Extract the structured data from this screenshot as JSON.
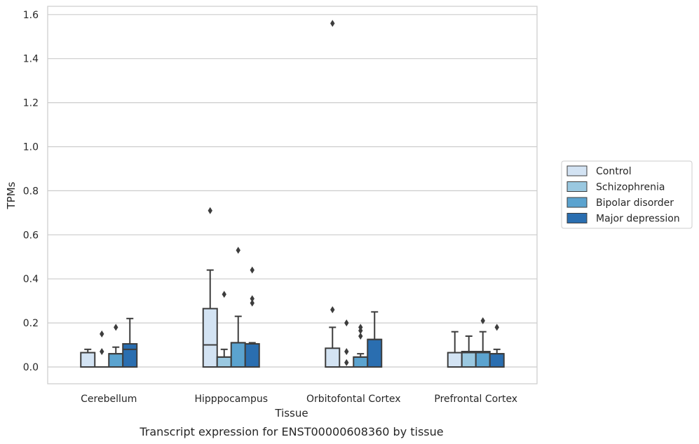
{
  "chart_data": {
    "type": "box",
    "title": "",
    "caption": "Transcript expression for ENST00000608360 by tissue",
    "xlabel": "Tissue",
    "ylabel": "TPMs",
    "ylim": [
      -0.075,
      1.645
    ],
    "yticks": [
      0.0,
      0.2,
      0.4,
      0.6,
      0.8,
      1.0,
      1.2,
      1.4,
      1.6
    ],
    "ytick_labels": [
      "0.0",
      "0.2",
      "0.4",
      "0.6",
      "0.8",
      "1.0",
      "1.2",
      "1.4",
      "1.6"
    ],
    "grid": true,
    "legend_position": "right",
    "categories": [
      "Cerebellum",
      "Hipppocampus",
      "Orbitofontal Cortex",
      "Prefrontal Cortex"
    ],
    "series": [
      {
        "name": "Control",
        "color": "#d3e3f3",
        "boxes": [
          {
            "min": 0.0,
            "q1": 0.0,
            "median": 0.065,
            "q3": 0.065,
            "max": 0.08,
            "outliers": []
          },
          {
            "min": 0.0,
            "q1": 0.0,
            "median": 0.1,
            "q3": 0.265,
            "max": 0.44,
            "outliers": [
              0.71
            ]
          },
          {
            "min": 0.0,
            "q1": 0.0,
            "median": 0.0,
            "q3": 0.085,
            "max": 0.18,
            "outliers": [
              0.26,
              1.56
            ]
          },
          {
            "min": 0.0,
            "q1": 0.0,
            "median": 0.065,
            "q3": 0.065,
            "max": 0.16,
            "outliers": []
          }
        ]
      },
      {
        "name": "Schizophrenia",
        "color": "#9ac8e0",
        "boxes": [
          {
            "min": 0.0,
            "q1": 0.0,
            "median": 0.0,
            "q3": 0.0,
            "max": 0.0,
            "outliers": [
              0.07,
              0.15
            ]
          },
          {
            "min": 0.0,
            "q1": 0.0,
            "median": 0.045,
            "q3": 0.045,
            "max": 0.08,
            "outliers": [
              0.33
            ]
          },
          {
            "min": 0.0,
            "q1": 0.0,
            "median": 0.0,
            "q3": 0.0,
            "max": 0.0,
            "outliers": [
              0.02,
              0.07,
              0.2
            ]
          },
          {
            "min": 0.0,
            "q1": 0.0,
            "median": 0.065,
            "q3": 0.07,
            "max": 0.14,
            "outliers": []
          }
        ]
      },
      {
        "name": "Bipolar disorder",
        "color": "#5ba3cf",
        "boxes": [
          {
            "min": 0.0,
            "q1": 0.0,
            "median": 0.06,
            "q3": 0.06,
            "max": 0.09,
            "outliers": [
              0.18
            ]
          },
          {
            "min": 0.0,
            "q1": 0.0,
            "median": 0.11,
            "q3": 0.11,
            "max": 0.23,
            "outliers": [
              0.53
            ]
          },
          {
            "min": 0.0,
            "q1": 0.0,
            "median": 0.045,
            "q3": 0.045,
            "max": 0.06,
            "outliers": [
              0.14,
              0.165,
              0.18
            ]
          },
          {
            "min": 0.0,
            "q1": 0.0,
            "median": 0.065,
            "q3": 0.07,
            "max": 0.16,
            "outliers": [
              0.21
            ]
          }
        ]
      },
      {
        "name": "Major depression",
        "color": "#2a6eb0",
        "boxes": [
          {
            "min": 0.0,
            "q1": 0.0,
            "median": 0.08,
            "q3": 0.105,
            "max": 0.22,
            "outliers": []
          },
          {
            "min": 0.0,
            "q1": 0.0,
            "median": 0.105,
            "q3": 0.105,
            "max": 0.11,
            "outliers": [
              0.29,
              0.31,
              0.44
            ]
          },
          {
            "min": 0.0,
            "q1": 0.0,
            "median": 0.125,
            "q3": 0.125,
            "max": 0.25,
            "outliers": []
          },
          {
            "min": 0.0,
            "q1": 0.0,
            "median": 0.06,
            "q3": 0.06,
            "max": 0.08,
            "outliers": [
              0.18
            ]
          }
        ]
      }
    ],
    "colors": {
      "grid": "#cccccc",
      "spine": "#cccccc",
      "line": "#3d3d3d",
      "text": "#262626"
    }
  }
}
